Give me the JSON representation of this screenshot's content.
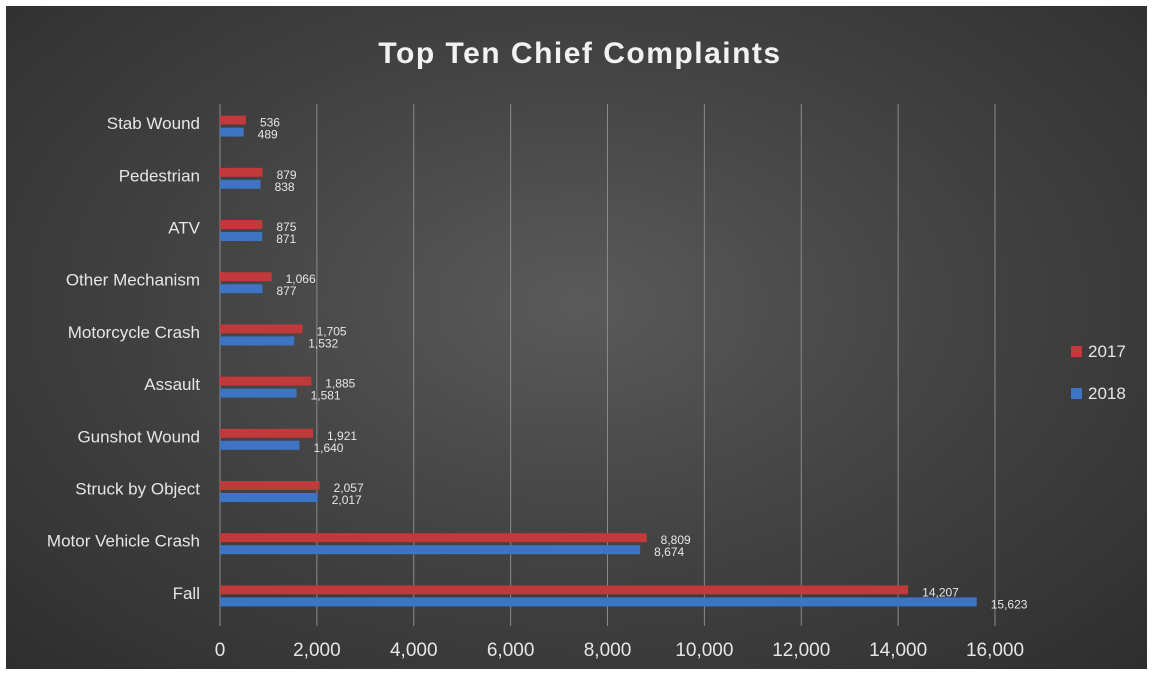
{
  "chart_data": {
    "type": "bar",
    "orientation": "horizontal",
    "title": "Top Ten Chief Complaints",
    "xlabel": "",
    "ylabel": "",
    "categories": [
      "Fall",
      "Motor Vehicle Crash",
      "Struck by Object",
      "Gunshot Wound",
      "Assault",
      "Motorcycle Crash",
      "Other Mechanism",
      "ATV",
      "Pedestrian",
      "Stab Wound"
    ],
    "series": [
      {
        "name": "2017",
        "color": "#c0393b",
        "values": [
          14207,
          8809,
          2057,
          1921,
          1885,
          1705,
          1066,
          875,
          879,
          536
        ],
        "labels": [
          "14,207",
          "8,809",
          "2,057",
          "1,921",
          "1,885",
          "1,705",
          "1,066",
          "875",
          "879",
          "536"
        ]
      },
      {
        "name": "2018",
        "color": "#3d74c4",
        "values": [
          15623,
          8674,
          2017,
          1640,
          1581,
          1532,
          877,
          871,
          838,
          489
        ],
        "labels": [
          "15,623",
          "8,674",
          "2,017",
          "1,640",
          "1,581",
          "1,532",
          "877",
          "871",
          "838",
          "489"
        ]
      }
    ],
    "xlim": [
      0,
      16000
    ],
    "xticks": [
      0,
      2000,
      4000,
      6000,
      8000,
      10000,
      12000,
      14000,
      16000
    ],
    "xtick_labels": [
      "0",
      "2,000",
      "4,000",
      "6,000",
      "8,000",
      "10,000",
      "12,000",
      "14,000",
      "16,000"
    ],
    "grid": "vertical",
    "legend_position": "right",
    "background": "#444444"
  }
}
